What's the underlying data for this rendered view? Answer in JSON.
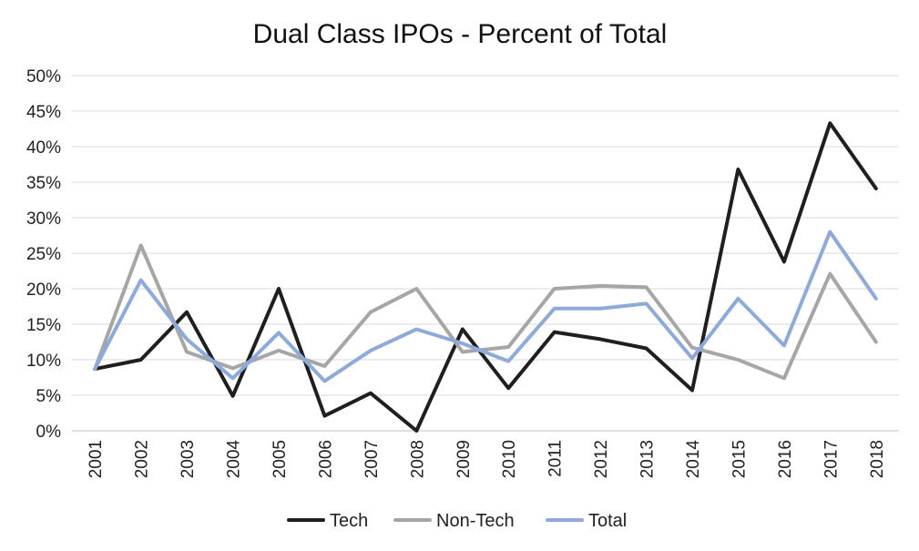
{
  "chart_data": {
    "type": "line",
    "title": "Dual Class IPOs - Percent of Total",
    "xlabel": "",
    "ylabel": "",
    "categories": [
      "2001",
      "2002",
      "2003",
      "2004",
      "2005",
      "2006",
      "2007",
      "2008",
      "2009",
      "2010",
      "2011",
      "2012",
      "2013",
      "2014",
      "2015",
      "2016",
      "2017",
      "2018"
    ],
    "y_ticks": [
      "0%",
      "5%",
      "10%",
      "15%",
      "20%",
      "25%",
      "30%",
      "35%",
      "40%",
      "45%",
      "50%"
    ],
    "ylim": [
      0,
      50
    ],
    "grid": true,
    "legend_position": "bottom",
    "series": [
      {
        "name": "Tech",
        "color": "#1f1f1f",
        "values": [
          8.7,
          10.0,
          16.7,
          4.9,
          20.0,
          2.1,
          5.3,
          0.0,
          14.3,
          6.0,
          13.9,
          12.9,
          11.6,
          5.7,
          36.8,
          23.8,
          43.3,
          34.1
        ]
      },
      {
        "name": "Non-Tech",
        "color": "#a6a6a6",
        "values": [
          8.7,
          26.1,
          11.1,
          8.8,
          11.3,
          9.1,
          16.7,
          20.0,
          11.1,
          11.8,
          20.0,
          20.4,
          20.2,
          11.7,
          10.0,
          7.4,
          22.1,
          12.5
        ]
      },
      {
        "name": "Total",
        "color": "#8eaadb",
        "values": [
          8.7,
          21.2,
          12.9,
          7.4,
          13.8,
          7.0,
          11.3,
          14.3,
          12.3,
          9.8,
          17.2,
          17.2,
          17.9,
          10.2,
          18.6,
          12.0,
          28.0,
          18.6
        ]
      }
    ]
  }
}
